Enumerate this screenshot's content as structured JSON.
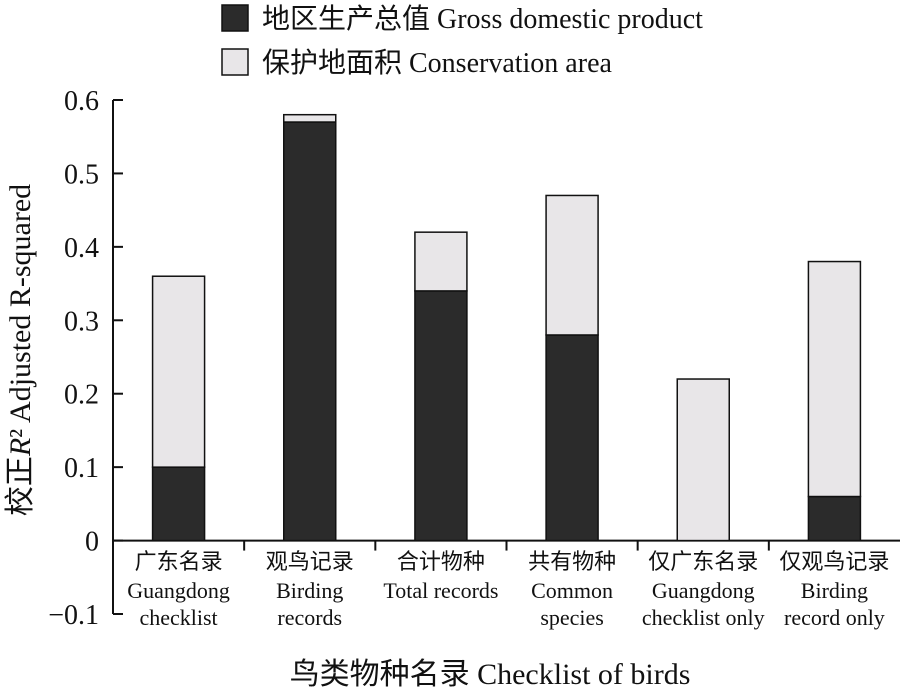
{
  "chart_data": {
    "type": "bar",
    "stacked": true,
    "categories": [
      {
        "zh": "广东名录",
        "en_lines": [
          "Guangdong",
          "checklist"
        ]
      },
      {
        "zh": "观鸟记录",
        "en_lines": [
          "Birding",
          "records"
        ]
      },
      {
        "zh": "合计物种",
        "en_lines": [
          "Total records"
        ]
      },
      {
        "zh": "共有物种",
        "en_lines": [
          "Common",
          "species"
        ]
      },
      {
        "zh": "仅广东名录",
        "en_lines": [
          "Guangdong",
          "checklist only"
        ]
      },
      {
        "zh": "仅观鸟记录",
        "en_lines": [
          "Birding",
          "record only"
        ]
      }
    ],
    "series": [
      {
        "name": "地区生产总值 Gross domestic product",
        "color": "#2b2b2b",
        "values": [
          0.1,
          0.57,
          0.34,
          0.28,
          0.0,
          0.06
        ]
      },
      {
        "name": "保护地面积 Conservation area",
        "color": "#e8e6e8",
        "values": [
          0.26,
          0.01,
          0.08,
          0.19,
          0.22,
          0.32
        ]
      }
    ],
    "ylim": [
      -0.1,
      0.6
    ],
    "yticks": [
      "−0.1",
      "0",
      "0.1",
      "0.2",
      "0.3",
      "0.4",
      "0.5",
      "0.6"
    ],
    "ytick_values": [
      -0.1,
      0,
      0.1,
      0.2,
      0.3,
      0.4,
      0.5,
      0.6
    ],
    "ylabel": "校正R² Adjusted R-squared",
    "xlabel": "鸟类物种名录 Checklist of birds",
    "legend_position": "top"
  }
}
